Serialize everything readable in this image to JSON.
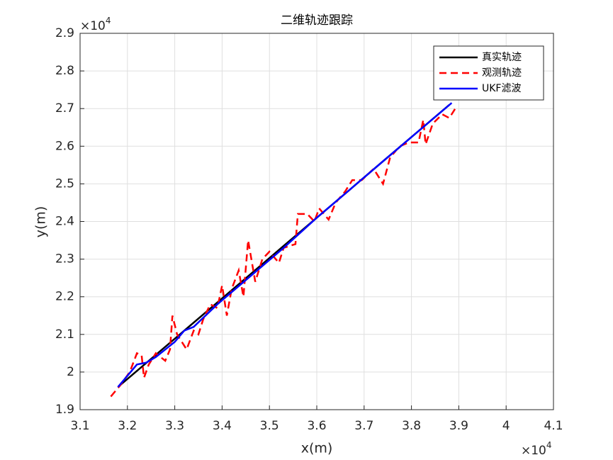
{
  "chart_data": {
    "type": "line",
    "title": "二维轨迹跟踪",
    "x_label": "x(m)",
    "y_label": "y(m)",
    "x_exponent": {
      "base": "×10",
      "power": "4"
    },
    "y_exponent": {
      "base": "×10",
      "power": "4"
    },
    "xlim": [
      31000,
      41000
    ],
    "xticks": [
      {
        "value": 31000,
        "label": "3.1"
      },
      {
        "value": 32000,
        "label": "3.2"
      },
      {
        "value": 33000,
        "label": "3.3"
      },
      {
        "value": 34000,
        "label": "3.4"
      },
      {
        "value": 35000,
        "label": "3.5"
      },
      {
        "value": 36000,
        "label": "3.6"
      },
      {
        "value": 37000,
        "label": "3.7"
      },
      {
        "value": 38000,
        "label": "3.8"
      },
      {
        "value": 39000,
        "label": "3.9"
      },
      {
        "value": 40000,
        "label": "4"
      },
      {
        "value": 41000,
        "label": "4.1"
      }
    ],
    "ylim": [
      19000,
      29000
    ],
    "yticks": [
      {
        "value": 19000,
        "label": "1.9"
      },
      {
        "value": 20000,
        "label": "2"
      },
      {
        "value": 21000,
        "label": "2.1"
      },
      {
        "value": 22000,
        "label": "2.2"
      },
      {
        "value": 23000,
        "label": "2.3"
      },
      {
        "value": 24000,
        "label": "2.4"
      },
      {
        "value": 25000,
        "label": "2.5"
      },
      {
        "value": 26000,
        "label": "2.6"
      },
      {
        "value": 27000,
        "label": "2.7"
      },
      {
        "value": 28000,
        "label": "2.8"
      },
      {
        "value": 29000,
        "label": "2.9"
      }
    ],
    "grid": true,
    "legend": "northeast",
    "series": [
      {
        "name": "真实轨迹",
        "color": "#000000",
        "dash": "solid",
        "x": [
          31800,
          32500,
          33200,
          33900,
          34600,
          35300,
          36000,
          36700,
          37400,
          38100,
          38800
        ],
        "values": [
          19600,
          20350,
          21100,
          21850,
          22600,
          23350,
          24100,
          24850,
          25600,
          26350,
          27100
        ]
      },
      {
        "name": "观测轨迹",
        "color": "#ff0000",
        "dash": "dashed",
        "x": [
          31650,
          31850,
          32050,
          32200,
          32300,
          32350,
          32450,
          32600,
          32800,
          32900,
          32950,
          33050,
          33250,
          33400,
          33500,
          33600,
          33750,
          33900,
          34000,
          34100,
          34200,
          34350,
          34450,
          34550,
          34700,
          34850,
          35000,
          35200,
          35300,
          35550,
          35600,
          35800,
          35950,
          36050,
          36250,
          36400,
          36600,
          36750,
          36950,
          37200,
          37400,
          37550,
          37750,
          37950,
          38150,
          38250,
          38300,
          38450,
          38650,
          38800,
          38950
        ],
        "values": [
          19350,
          19650,
          20000,
          20500,
          20450,
          19850,
          20200,
          20500,
          20300,
          20600,
          21500,
          21000,
          20600,
          21100,
          21000,
          21400,
          21800,
          21700,
          22300,
          21500,
          22200,
          22700,
          22000,
          23500,
          22400,
          23000,
          23200,
          22900,
          23300,
          23400,
          24200,
          24200,
          24000,
          24350,
          24050,
          24500,
          24800,
          25100,
          25100,
          25400,
          25000,
          25700,
          26000,
          26100,
          26100,
          26700,
          26050,
          26600,
          26850,
          26750,
          27050
        ]
      },
      {
        "name": "UKF滤波",
        "color": "#0000ff",
        "dash": "solid",
        "x": [
          31800,
          32000,
          32200,
          32400,
          32600,
          33000,
          33200,
          33400,
          33900,
          34600,
          35300,
          36000,
          36700,
          37400,
          38100,
          38850
        ],
        "values": [
          19600,
          19900,
          20200,
          20250,
          20400,
          20800,
          21100,
          21200,
          21800,
          22550,
          23300,
          24100,
          24850,
          25600,
          26350,
          27150
        ]
      }
    ]
  }
}
